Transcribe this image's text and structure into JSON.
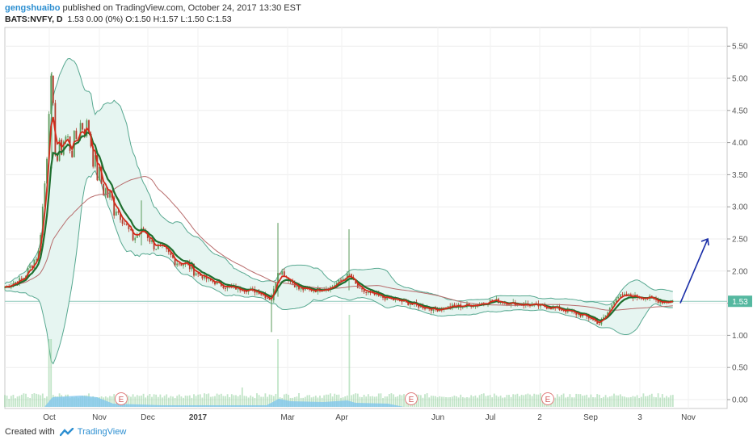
{
  "header": {
    "author": "gengshuaibo",
    "published": "published on TradingView.com, October 24, 2017 13:30 EST",
    "symbol": "BATS:NVFY, D",
    "ohlc": "1.53 0.00 (0%) O:1.50 H:1.57 L:1.50 C:1.53"
  },
  "footer": {
    "created": "Created with",
    "brand": "TradingView"
  },
  "colors": {
    "price_up": "#5a9a5a",
    "price_down": "#b33a2a",
    "ema_green": "#1f6f2f",
    "ema_red": "#d42a1a",
    "ma_slow": "#b76b6b",
    "bollinger": "#57a890",
    "bollinger_fill": "#e6f5f1",
    "volume": "#8fd09a",
    "volume_avg": "#7cc4ee",
    "arrow": "#1a2ea8",
    "last_price_badge": "#55b8a0"
  },
  "chart_data": {
    "type": "candlestick",
    "x_ticks": [
      "Oct",
      "Nov",
      "Dec",
      "2017",
      "Mar",
      "Apr",
      "Jun",
      "Jul",
      "2",
      "Sep",
      "3",
      "Nov"
    ],
    "y_ticks": [
      "5.50",
      "5.00",
      "4.50",
      "4.00",
      "3.50",
      "3.00",
      "2.50",
      "2.00",
      "1.50",
      "1.00",
      "0.50",
      "0.00"
    ],
    "ylim": [
      -0.1,
      5.7
    ],
    "last_price": "1.53",
    "earnings_markers": [
      "E",
      "E",
      "E"
    ],
    "annotation": "upward arrow projecting from 1.50 toward 2.50",
    "price_series": [
      [
        "start",
        1.75
      ],
      [
        "early Oct",
        2.2
      ],
      [
        "Oct spike",
        5.05
      ],
      [
        "Oct",
        3.8
      ],
      [
        "late Oct",
        4.3
      ],
      [
        "Nov",
        3.4
      ],
      [
        "mid Nov",
        2.9
      ],
      [
        "late Nov",
        2.6
      ],
      [
        "Dec",
        2.3
      ],
      [
        "mid Dec",
        2.15
      ],
      [
        "2017",
        1.95
      ],
      [
        "Jan",
        1.75
      ],
      [
        "Feb",
        1.7
      ],
      [
        "late Feb",
        1.55
      ],
      [
        "Mar",
        2.0
      ],
      [
        "mid Mar",
        1.7
      ],
      [
        "Apr",
        1.9
      ],
      [
        "May",
        1.55
      ],
      [
        "late May",
        1.4
      ],
      [
        "Jun",
        1.45
      ],
      [
        "Jul",
        1.55
      ],
      [
        "Aug",
        1.45
      ],
      [
        "late Aug",
        1.35
      ],
      [
        "Sep",
        1.2
      ],
      [
        "mid Sep",
        1.6
      ],
      [
        "3",
        1.6
      ],
      [
        "Oct 24",
        1.53
      ]
    ]
  }
}
